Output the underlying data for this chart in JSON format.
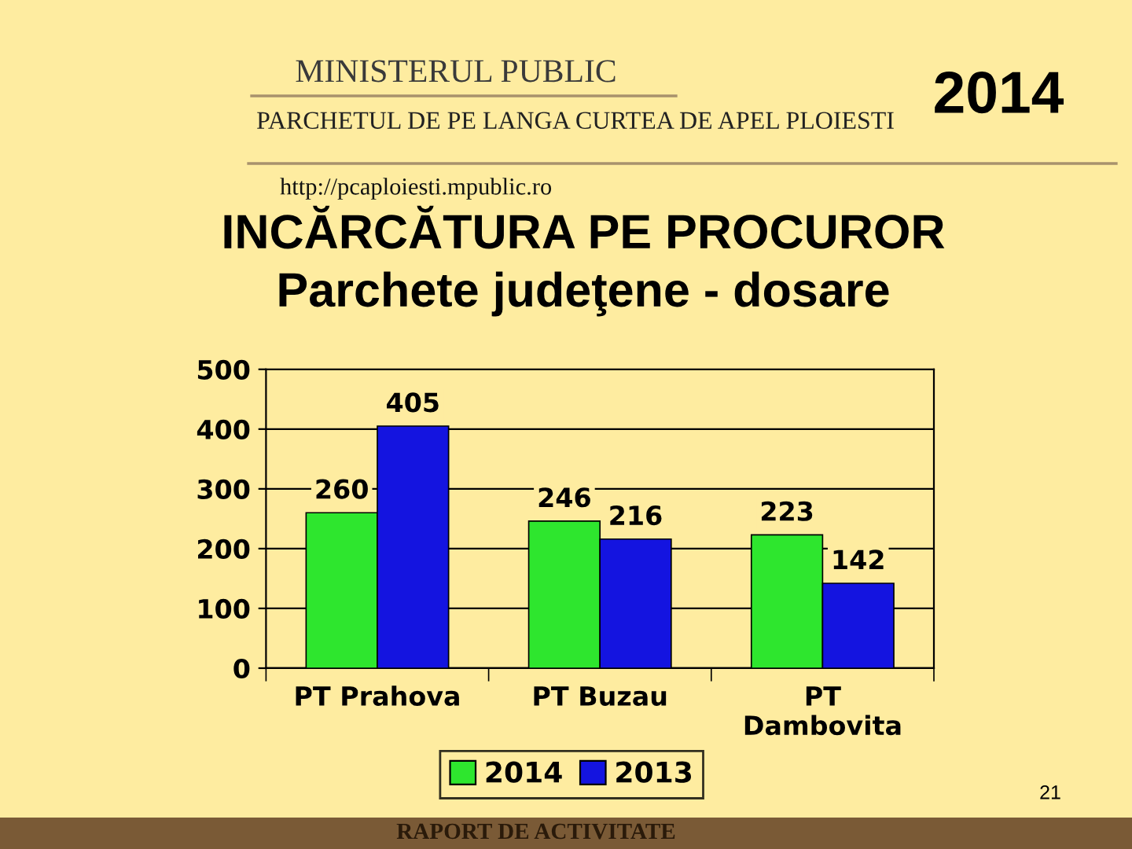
{
  "chart_data": {
    "type": "bar",
    "title": "INCĂRCĂTURA PE PROCUROR",
    "subtitle": "Parchete judeţene - dosare",
    "categories": [
      "PT Prahova",
      "PT Buzau",
      "PT\nDambovita"
    ],
    "series": [
      {
        "name": "2014",
        "color": "#2ee62e",
        "values": [
          260,
          246,
          223
        ]
      },
      {
        "name": "2013",
        "color": "#1414e0",
        "values": [
          405,
          216,
          142
        ]
      }
    ],
    "ylim": [
      0,
      500
    ],
    "yticks": [
      0,
      100,
      200,
      300,
      400,
      500
    ],
    "grid": "y",
    "legend": "bottom",
    "data_labels": true,
    "annotations": [
      "MINISTERUL PUBLIC",
      "PARCHETUL DE PE LANGA CURTEA DE APEL PLOIESTI",
      "http://pcaploiesti.mpublic.ro",
      "2014",
      "21",
      "RAPORT DE ACTIVITATE"
    ]
  }
}
